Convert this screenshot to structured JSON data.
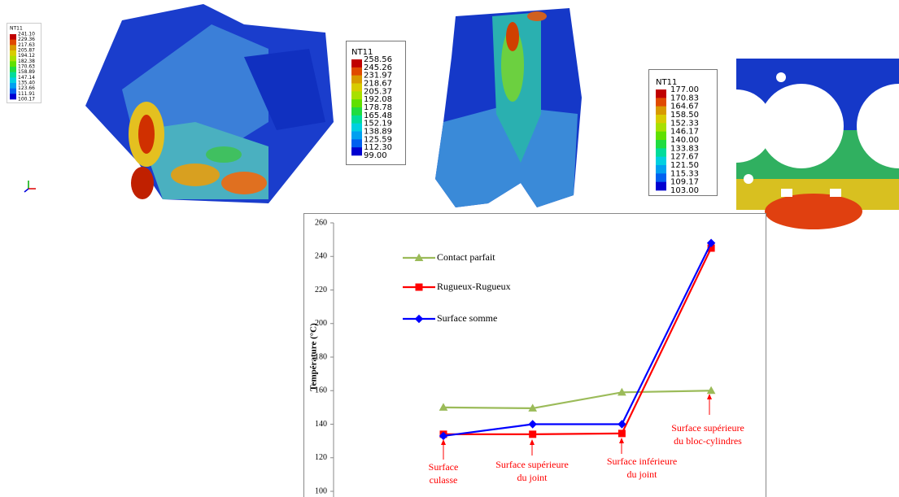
{
  "figures": [
    {
      "legend_title": "NT11",
      "legend_values": [
        "241.10",
        "229.36",
        "217.63",
        "205.87",
        "194.12",
        "182.38",
        "170.63",
        "158.89",
        "147.14",
        "135.40",
        "123.66",
        "111.91",
        "100.17"
      ]
    },
    {
      "legend_title": "NT11",
      "legend_values": [
        "258.56",
        "245.26",
        "231.97",
        "218.67",
        "205.37",
        "192.08",
        "178.78",
        "165.48",
        "152.19",
        "138.89",
        "125.59",
        "112.30",
        "99.00"
      ]
    },
    {
      "legend_title": "NT11",
      "legend_values": [
        "177.00",
        "170.83",
        "164.67",
        "158.50",
        "152.33",
        "146.17",
        "140.00",
        "133.83",
        "127.67",
        "121.50",
        "115.33",
        "109.17",
        "103.00"
      ]
    }
  ],
  "colormap": [
    "#c00000",
    "#e04a00",
    "#d89a00",
    "#d8cc00",
    "#a8e000",
    "#60e000",
    "#20dc40",
    "#00dc9a",
    "#00d0e0",
    "#00a0f0",
    "#0060f0",
    "#0000d0"
  ],
  "chart_data": {
    "type": "line",
    "categories": [
      null,
      null,
      null,
      null
    ],
    "ylabel": "Température (°C)",
    "ylim": [
      100,
      260
    ],
    "yticks": [
      100,
      120,
      140,
      160,
      180,
      200,
      220,
      240,
      260
    ],
    "legend": "upper left",
    "series": [
      {
        "name": "Contact parfait",
        "color": "#9bbb59",
        "marker": "triangle",
        "values": [
          150,
          149.5,
          159,
          160
        ]
      },
      {
        "name": "Rugueux-Rugueux",
        "color": "#ff0000",
        "marker": "square",
        "values": [
          134,
          134,
          134.5,
          245
        ]
      },
      {
        "name": "Surface somme",
        "color": "#0000ff",
        "marker": "diamond",
        "values": [
          133,
          140,
          140,
          248
        ]
      }
    ],
    "annotation_color": "#ff0000",
    "annotations": [
      {
        "lines": [
          "Surface",
          "culasse"
        ]
      },
      {
        "lines": [
          "Surface supérieure",
          "du joint"
        ]
      },
      {
        "lines": [
          "Surface inférieure",
          "du joint"
        ]
      },
      {
        "lines": [
          "Surface supérieure",
          "du bloc-cylindres"
        ]
      }
    ]
  }
}
